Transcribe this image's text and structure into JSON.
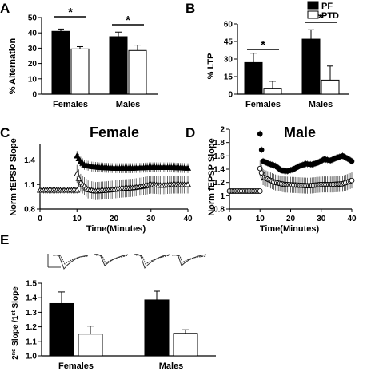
{
  "chart_data": [
    {
      "panel": "A",
      "type": "bar",
      "categories": [
        "Females",
        "Males"
      ],
      "ylabel": "% Alternation",
      "ylim": [
        0,
        50
      ],
      "yticks": [
        "0",
        "10",
        "20",
        "30",
        "40",
        "50"
      ],
      "series": [
        {
          "key": "pf",
          "values": [
            41,
            37.5
          ],
          "errors": [
            1.5,
            3
          ]
        },
        {
          "key": "ptd",
          "values": [
            29.5,
            28.5
          ],
          "errors": [
            1.5,
            3.5
          ]
        }
      ],
      "significance": [
        "*",
        "*"
      ],
      "grid": false
    },
    {
      "panel": "B",
      "type": "bar",
      "categories": [
        "Females",
        "Males"
      ],
      "ylabel": "% LTP",
      "ylim": [
        0,
        60
      ],
      "yticks": [
        "0",
        "15",
        "30",
        "45",
        "60"
      ],
      "series": [
        {
          "key": "pf",
          "values": [
            27,
            47
          ],
          "errors": [
            8,
            8
          ]
        },
        {
          "key": "ptd",
          "values": [
            5,
            12
          ],
          "errors": [
            6,
            12
          ]
        }
      ],
      "significance": [
        "*",
        "*"
      ],
      "legend": {
        "placement": "top-right",
        "entries": [
          "PF",
          "PTD"
        ]
      },
      "grid": false
    },
    {
      "panel": "C",
      "type": "scatter",
      "title": "Female",
      "xlabel": "Time(Minutes)",
      "ylabel": "Norm fEPSP Slope",
      "xlim": [
        0,
        40
      ],
      "ylim": [
        0.8,
        1.6
      ],
      "xticks": [
        "0",
        "10",
        "20",
        "30",
        "40"
      ],
      "yticks": [
        "0.8",
        "1.1",
        "1.4"
      ],
      "baseline": {
        "x": [
          0,
          10
        ],
        "n": 21,
        "value": 1.03,
        "error": 0.04
      },
      "series": [
        {
          "key": "pf",
          "marker": "triangle-filled",
          "keypoints": [
            [
              10,
              1.45
            ],
            [
              11,
              1.38
            ],
            [
              12,
              1.34
            ],
            [
              13,
              1.33
            ],
            [
              14,
              1.32
            ],
            [
              16,
              1.31
            ],
            [
              20,
              1.3
            ],
            [
              25,
              1.3
            ],
            [
              30,
              1.31
            ],
            [
              35,
              1.31
            ],
            [
              40,
              1.3
            ]
          ],
          "error": 0.06
        },
        {
          "key": "ptd",
          "marker": "triangle-open",
          "keypoints": [
            [
              10,
              1.23
            ],
            [
              11,
              1.12
            ],
            [
              12,
              1.08
            ],
            [
              13,
              1.04
            ],
            [
              15,
              1.02
            ],
            [
              18,
              1.03
            ],
            [
              22,
              1.05
            ],
            [
              25,
              1.06
            ],
            [
              28,
              1.08
            ],
            [
              30,
              1.1
            ],
            [
              33,
              1.09
            ],
            [
              36,
              1.1
            ],
            [
              40,
              1.1
            ]
          ],
          "error": 0.11
        }
      ],
      "grid": false
    },
    {
      "panel": "D",
      "type": "scatter",
      "title": "Male",
      "xlabel": "Time(Minutes)",
      "ylabel": "Norm fEPSP Slope",
      "xlim": [
        0,
        40
      ],
      "ylim": [
        0.8,
        2.0
      ],
      "xticks": [
        "0",
        "10",
        "20",
        "30",
        "40"
      ],
      "yticks": [
        "0.8",
        "1",
        "1.2",
        "1.4",
        "1.6",
        "1.8",
        "2"
      ],
      "baseline": {
        "x": [
          0,
          10
        ],
        "n": 21,
        "value": 1.07,
        "error": 0.02
      },
      "series": [
        {
          "key": "pf",
          "marker": "circle-filled",
          "keypoints": [
            [
              10,
              1.93
            ],
            [
              10.5,
              1.69
            ],
            [
              11,
              1.52
            ],
            [
              13,
              1.48
            ],
            [
              15,
              1.45
            ],
            [
              17,
              1.38
            ],
            [
              19,
              1.37
            ],
            [
              21,
              1.4
            ],
            [
              23,
              1.45
            ],
            [
              25,
              1.48
            ],
            [
              27,
              1.47
            ],
            [
              29,
              1.5
            ],
            [
              31,
              1.55
            ],
            [
              33,
              1.53
            ],
            [
              35,
              1.57
            ],
            [
              37,
              1.6
            ],
            [
              39,
              1.55
            ],
            [
              40,
              1.52
            ]
          ],
          "error": 0.05
        },
        {
          "key": "ptd",
          "marker": "circle-open",
          "keypoints": [
            [
              10,
              1.41
            ],
            [
              11,
              1.28
            ],
            [
              13,
              1.24
            ],
            [
              15,
              1.2
            ],
            [
              18,
              1.17
            ],
            [
              22,
              1.16
            ],
            [
              26,
              1.15
            ],
            [
              30,
              1.17
            ],
            [
              34,
              1.17
            ],
            [
              37,
              1.18
            ],
            [
              40,
              1.23
            ]
          ],
          "error": 0.12
        }
      ],
      "grid": false
    },
    {
      "panel": "E",
      "type": "bar",
      "categories": [
        "Females",
        "Males"
      ],
      "ylim": [
        1.0,
        1.5
      ],
      "yticks": [
        "1.0",
        "1.1",
        "1.2",
        "1.3",
        "1.4",
        "1.5"
      ],
      "series": [
        {
          "key": "pf",
          "values": [
            1.36,
            1.385
          ],
          "errors": [
            0.08,
            0.06
          ]
        },
        {
          "key": "ptd",
          "values": [
            1.15,
            1.155
          ],
          "errors": [
            0.055,
            0.025
          ]
        }
      ],
      "grid": false
    }
  ],
  "labels": {
    "panel_a": "A",
    "panel_b": "B",
    "panel_c": "C",
    "panel_d": "D",
    "panel_e": "E",
    "legend_pf": "PF",
    "legend_ptd": "PTD",
    "female_title": "Female",
    "male_title": "Male",
    "time_label": "Time(Minutes)",
    "fepsp_label": "Norm fEPSP Slope",
    "alternation_label": "% Alternation",
    "ltp_label": "% LTP",
    "females": "Females",
    "males": "Males",
    "slope_label_part1": "2",
    "slope_label_sup1": "nd",
    "slope_label_part2": " Slope /1",
    "slope_label_sup2": "st",
    "slope_label_part3": " Slope",
    "star": "*"
  },
  "colors": {
    "pf": "#000000",
    "ptd": "#ffffff",
    "axis": "#000000",
    "trace": "#333333"
  }
}
